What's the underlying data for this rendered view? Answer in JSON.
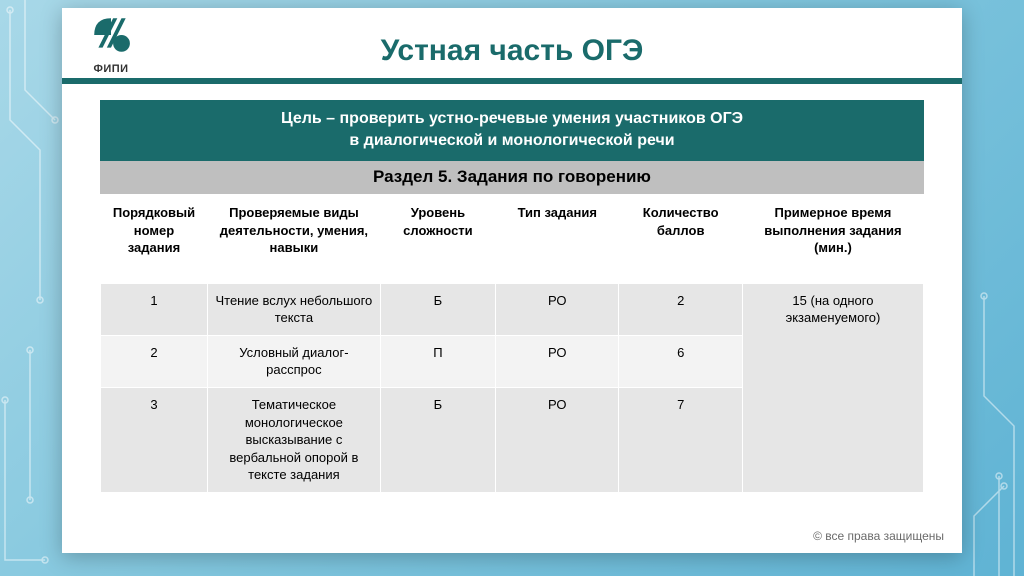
{
  "colors": {
    "title": "#1a6b6b",
    "accent_bar": "#1a6b6b",
    "goal_bg": "#1a6b6b",
    "section_bg": "#bfbfbf",
    "row_odd": "#e6e6e6",
    "row_even": "#f3f3f3"
  },
  "logo": {
    "text": "ФИПИ"
  },
  "title": "Устная часть ОГЭ",
  "goal": {
    "line1": "Цель – проверить устно-речевые умения участников ОГЭ",
    "line2": "в диалогической и монологической речи"
  },
  "section": "Раздел 5. Задания по говорению",
  "table": {
    "col_widths_pct": [
      13,
      21,
      14,
      15,
      15,
      22
    ],
    "headers": [
      "Порядковый номер задания",
      "Проверяемые виды деятельности, умения, навыки",
      "Уровень сложности",
      "Тип задания",
      "Количество баллов",
      "Примерное время выполнения задания (мин.)"
    ],
    "rows": [
      {
        "num": "1",
        "skill": "Чтение вслух небольшого текста",
        "level": "Б",
        "type": "РО",
        "points": "2"
      },
      {
        "num": "2",
        "skill": "Условный диалог-расспрос",
        "level": "П",
        "type": "РО",
        "points": "6"
      },
      {
        "num": "3",
        "skill": "Тематическое монологическое высказывание с вербальной опорой в тексте задания",
        "level": "Б",
        "type": "РО",
        "points": "7"
      }
    ],
    "time_merged": "15 (на одного экзаменуемого)"
  },
  "footer": "© все права защищены"
}
